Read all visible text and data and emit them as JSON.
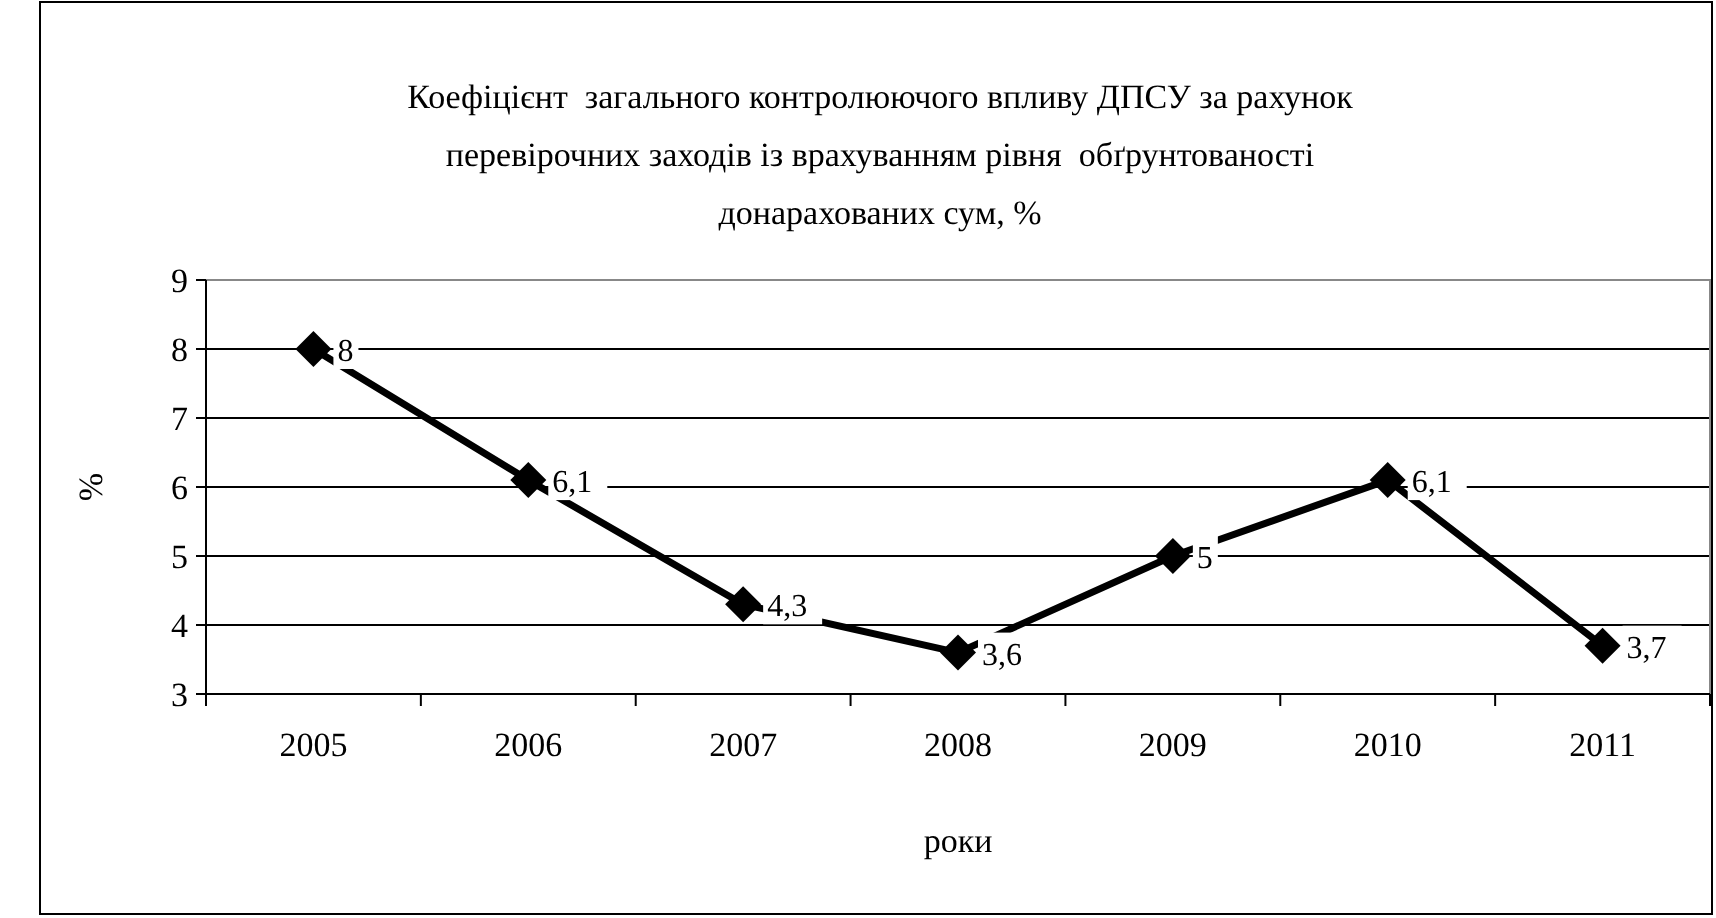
{
  "chart_data": {
    "type": "line",
    "title": "Коефіцієнт  загального контролюючого впливу ДПСУ за рахунок перевірочних заходів із врахуванням рівня  обґрунтованості донарахованих сум, %",
    "xlabel": "роки",
    "ylabel": "%",
    "categories": [
      "2005",
      "2006",
      "2007",
      "2008",
      "2009",
      "2010",
      "2011"
    ],
    "series": [
      {
        "color": "#000000",
        "values": [
          8,
          6.1,
          4.3,
          3.6,
          5,
          6.1,
          3.7
        ],
        "value_labels": [
          "8",
          "6,1",
          "4,3",
          "3,6",
          "5",
          "6,1",
          "3,7"
        ]
      }
    ],
    "ylim": [
      3,
      9
    ],
    "yticks": [
      3,
      4,
      5,
      6,
      7,
      8,
      9
    ],
    "grid": "y",
    "marker": "diamond",
    "line_style": "solid"
  }
}
